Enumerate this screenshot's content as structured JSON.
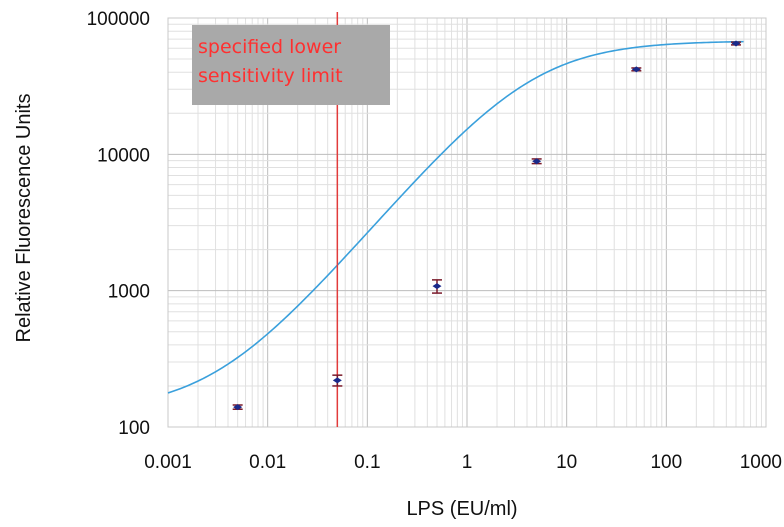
{
  "chart_data": {
    "type": "scatter",
    "title": "",
    "xlabel": "LPS (EU/ml)",
    "ylabel": "Relative Fluorescence Units",
    "x_scale": "log",
    "y_scale": "log",
    "xlim": [
      0.001,
      1000
    ],
    "ylim": [
      100,
      100000
    ],
    "x_ticks": [
      "0.001",
      "0.01",
      "0.1",
      "1",
      "10",
      "100",
      "1000"
    ],
    "y_ticks": [
      "100",
      "1000",
      "10000",
      "100000"
    ],
    "grid": true,
    "series": [
      {
        "color": "#1a2a8a",
        "marker": "diamond",
        "points": [
          {
            "x": 0.005,
            "y": 140,
            "err": 5
          },
          {
            "x": 0.05,
            "y": 220,
            "err": 20
          },
          {
            "x": 0.5,
            "y": 1080,
            "err": 120
          },
          {
            "x": 5,
            "y": 8900,
            "err": 350
          },
          {
            "x": 50,
            "y": 42000,
            "err": 1000
          },
          {
            "x": 500,
            "y": 65000,
            "err": 1500
          }
        ]
      }
    ],
    "fit_curve": {
      "color": "#3aa0dc",
      "model": "4PL",
      "bottom": 130,
      "top": 68000,
      "ec50": 4.2,
      "hill": 0.87
    },
    "reference_line": {
      "x": 0.05,
      "color": "#e23b3b",
      "label": "specified lower sensitivity limit",
      "label_lines": [
        "specified lower",
        "sensitivity limit"
      ],
      "label_bg": "#a9a9a9",
      "label_color": "#ff3030"
    },
    "error_bar_color": "#7a1a2a"
  }
}
